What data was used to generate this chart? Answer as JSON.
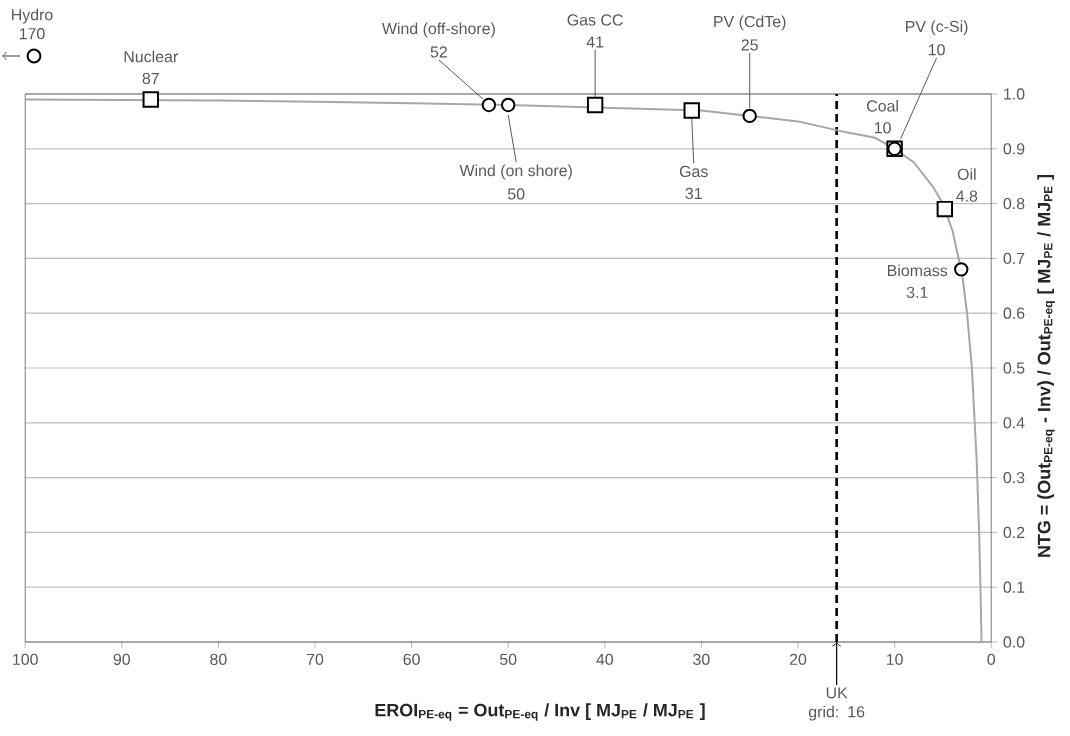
{
  "chart_data": {
    "type": "scatter",
    "xlabel": "EROI$_{PE-eq}$ = Out$_{PE-eq}$ / Inv    [ MJ$_{PE}$ / MJ$_{PE}$ ]",
    "ylabel": "NTG  =  (Out$_{PE-eq}$ - Inv) / Out$_{PE-eq}$    [ MJ$_{PE}$ / MJ$_{PE}$ ]",
    "xlim": [
      100,
      0
    ],
    "xticks": [
      100,
      90,
      80,
      70,
      60,
      50,
      40,
      30,
      20,
      10,
      0
    ],
    "ylim": [
      0,
      1
    ],
    "yticks": [
      {
        "value": 0,
        "label": "0.0"
      },
      {
        "value": 0.1,
        "label": "0.1"
      },
      {
        "value": 0.2,
        "label": "0.2"
      },
      {
        "value": 0.3,
        "label": "0.3"
      },
      {
        "value": 0.4,
        "label": "0.4"
      },
      {
        "value": 0.5,
        "label": "0.5"
      },
      {
        "value": 0.6,
        "label": "0.6"
      },
      {
        "value": 0.7,
        "label": "0.7"
      },
      {
        "value": 0.8,
        "label": "0.8"
      },
      {
        "value": 0.9,
        "label": "0.9"
      },
      {
        "value": 1,
        "label": "1.0"
      }
    ],
    "grid": "y",
    "series": [
      {
        "type": "line",
        "color": "#a6a6a6",
        "marker": "none",
        "x": [
          1,
          1.1,
          1.25,
          1.5,
          2,
          2.5,
          3,
          4,
          5,
          6,
          8,
          10,
          12,
          15,
          20,
          25,
          30,
          40,
          50,
          60,
          70,
          80,
          90,
          100
        ],
        "values": [
          0,
          0.09,
          0.2,
          0.33,
          0.5,
          0.6,
          0.67,
          0.75,
          0.8,
          0.83,
          0.875,
          0.9,
          0.92,
          0.93,
          0.95,
          0.96,
          0.97,
          0.975,
          0.98,
          0.983,
          0.986,
          0.988,
          0.989,
          0.99
        ]
      },
      {
        "type": "scatter",
        "color": "#000000",
        "marker": "square",
        "x": [
          87,
          41,
          31,
          10,
          4.8
        ],
        "values": [
          0.99,
          0.98,
          0.97,
          0.9,
          0.79
        ]
      },
      {
        "type": "scatter",
        "color": "#000000",
        "marker": "circle",
        "x": [
          52,
          50,
          25,
          10,
          3.1
        ],
        "values": [
          0.98,
          0.98,
          0.96,
          0.9,
          0.68
        ]
      }
    ],
    "annotations": [
      {
        "text": "Nuclear",
        "x": 87,
        "y": 0.99
      },
      "Gas CC",
      {
        "text": "Gas",
        "x": 31,
        "y": 0.97
      },
      {
        "text": "Coal",
        "x": 10,
        "y": 0.9
      },
      {
        "text": "Oil",
        "x": 4.8,
        "y": 0.79
      },
      "Wind (off-shore)",
      {
        "text": "Wind (on shore)",
        "x": 50,
        "y": 0.98
      },
      "PV (CdTe)",
      "PV (c-Si)",
      {
        "text": "Biomass",
        "x": 3.1,
        "y": 0.68
      },
      {
        "text": "87",
        "x": 87,
        "y": 0.99
      },
      {
        "text": "41",
        "x": 41,
        "y": 0.98
      },
      "31",
      {
        "text": "10",
        "x": 10,
        "y": 0.9
      },
      {
        "text": "4.8",
        "x": 4.8,
        "y": 0.79
      },
      {
        "text": "52",
        "x": 52,
        "y": 0.98
      },
      "50",
      {
        "text": "25",
        "x": 25,
        "y": 0.96
      },
      {
        "text": "10",
        "x": 10,
        "y": 0.9
      },
      {
        "text": "3.1",
        "x": 3.1,
        "y": 0.68
      },
      "Hydro 170"
    ],
    "ref_lines": [
      {
        "axis": "x",
        "value": 16,
        "label": "UK grid: 16",
        "color": "#000000",
        "line_style": "dashed"
      }
    ]
  }
}
